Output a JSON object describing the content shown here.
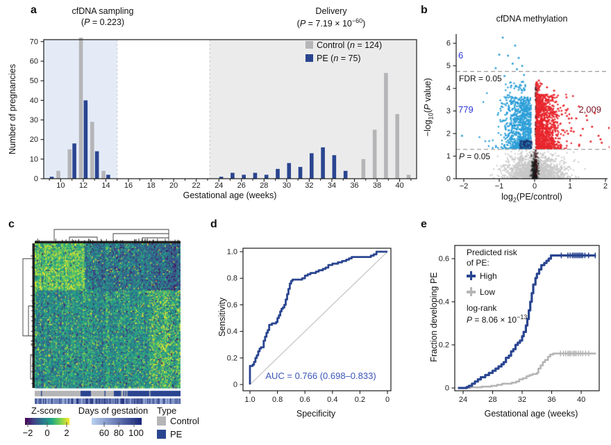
{
  "panels": {
    "a": {
      "label": "a",
      "sampling_title": "cfDNA sampling",
      "sampling_p": {
        "pre": "(",
        "it": "P",
        "post": " = 0.223)"
      },
      "delivery_title": "Delivery",
      "delivery_p": {
        "pre": "(",
        "it": "P",
        "post": " = 7.19 × 10",
        "sup": "−60",
        "end": ")"
      },
      "ylabel": "Number of pregnancies",
      "xlabel": "Gestational age (weeks)",
      "legend": {
        "control": {
          "pre": "Control (",
          "it": "n",
          "post": " = 124)"
        },
        "pe": {
          "pre": "PE (",
          "it": "n",
          "post": " = 75)"
        }
      }
    },
    "b": {
      "label": "b",
      "title": "cfDNA methylation",
      "ylabel": {
        "p1": "−log",
        "sub": "10",
        "p2": "(",
        "it": "P",
        "p3": " value)"
      },
      "xlabel": {
        "p1": "log",
        "sub": "2",
        "p2": "(PE/control)"
      },
      "fdr_label": "FDR = 0.05",
      "p_label": {
        "it": "P",
        "post": " = 0.05"
      },
      "count_above_fdr": "6",
      "count_hypo": "779",
      "count_hyper": "2,009"
    },
    "c": {
      "label": "c",
      "zscore_title": "Z-score",
      "days_title": "Days of gestation",
      "type_title": "Type",
      "type_control": "Control",
      "type_pe": "PE"
    },
    "d": {
      "label": "d",
      "ylabel": "Sensitivity",
      "xlabel": "Specificity",
      "auc_label": "AUC = 0.766 (0.698–0.833)"
    },
    "e": {
      "label": "e",
      "ylabel": "Fraction developing PE",
      "xlabel": "Gestational age (weeks)",
      "legend_title1": "Predicted risk",
      "legend_title2": "of PE:",
      "high_label": "High",
      "low_label": "Low",
      "logrank_label": "log-rank",
      "p_value": {
        "it": "P",
        "post": " = 8.06 × 10",
        "sup": "−13"
      }
    }
  },
  "colors": {
    "pe_navy": "#2a4590",
    "control_gray": "#b5b5b7",
    "sampling_band": "#e4ebf7",
    "delivery_band": "#ebebeb",
    "hypo_blue": "#2d9fd8",
    "hyper_red": "#e8262d",
    "ns_gray": "#c8c8c8",
    "count_text_blue": "#2b35d8",
    "hyper_text_maroon": "#7a1222",
    "auc_text": "#3a55b8",
    "axis": "#1a1a1a",
    "dash_gray": "#999999",
    "diag_gray": "#c4c4c4"
  },
  "chart_data": [
    {
      "panel": "a",
      "type": "bar",
      "xlabel": "Gestational age (weeks)",
      "ylabel": "Number of pregnancies",
      "xlim": [
        8.5,
        41.5
      ],
      "ylim": [
        0,
        75
      ],
      "xticks": [
        10,
        12,
        14,
        16,
        18,
        20,
        22,
        24,
        26,
        28,
        30,
        32,
        34,
        36,
        38,
        40
      ],
      "yticks": [
        0,
        10,
        20,
        30,
        40,
        50,
        60,
        70
      ],
      "regions": [
        {
          "name": "cfDNA sampling",
          "p_value": "P = 0.223",
          "x0": 8.5,
          "x1": 15,
          "color": "#e4ebf7"
        },
        {
          "name": "Delivery",
          "p_value": "P = 7.19 × 10−60",
          "x0": 23.2,
          "x1": 41.5,
          "color": "#ebebeb"
        }
      ],
      "series": [
        {
          "name": "Control",
          "n": 124,
          "color": "#b5b5b7",
          "bars": [
            [
              10,
              4
            ],
            [
              11,
              15
            ],
            [
              12,
              72
            ],
            [
              13,
              29
            ],
            [
              14,
              4
            ],
            [
              37,
              10
            ],
            [
              38,
              25
            ],
            [
              39,
              54
            ],
            [
              40,
              33
            ],
            [
              41,
              2
            ]
          ]
        },
        {
          "name": "PE",
          "n": 75,
          "color": "#2a4590",
          "bars": [
            [
              9,
              1
            ],
            [
              11,
              18
            ],
            [
              12,
              40
            ],
            [
              13,
              14
            ],
            [
              14,
              2
            ],
            [
              24,
              1
            ],
            [
              25,
              3
            ],
            [
              26,
              2
            ],
            [
              27,
              3
            ],
            [
              28,
              2
            ],
            [
              29,
              5
            ],
            [
              30,
              8
            ],
            [
              31,
              6
            ],
            [
              32,
              13
            ],
            [
              33,
              16
            ],
            [
              34,
              12
            ],
            [
              35,
              4
            ]
          ]
        }
      ]
    },
    {
      "panel": "b",
      "type": "scatter",
      "title": "cfDNA methylation",
      "xlim": [
        -2.15,
        2.15
      ],
      "ylim": [
        0,
        6.5
      ],
      "xtick_vals": [
        -2,
        -1,
        0,
        1,
        2
      ],
      "xtick_labels": [
        "−2",
        "−1",
        "0",
        "1",
        "2"
      ],
      "ytick_vals": [
        0,
        1,
        2,
        3,
        4,
        5,
        6
      ],
      "ytick_labels": [
        "0",
        "1",
        "2",
        "3",
        "4",
        "5",
        "6"
      ],
      "fdr_line_y": 4.75,
      "p_line_y": 1.3,
      "n_hypo_significant": 779,
      "n_hyper_significant": 2009,
      "n_above_fdr": 6,
      "sim": {
        "seed": 42,
        "n_hypo": 800,
        "n_hyper": 980,
        "n_ns": 1500
      }
    },
    {
      "panel": "c",
      "type": "heatmap",
      "colormap": "viridis",
      "zscore_tick_labels": [
        "−2",
        "0",
        "2"
      ],
      "days_tick_labels": [
        "60",
        "80",
        "100"
      ],
      "type_categories": [
        {
          "label": "Control",
          "color": "#b5b5b7"
        },
        {
          "label": "PE",
          "color": "#2a4590"
        }
      ],
      "sim": {
        "seed": 7,
        "cols": 140,
        "rows": 120
      }
    },
    {
      "panel": "d",
      "type": "line",
      "xtick_vals": [
        1.0,
        0.8,
        0.6,
        0.4,
        0.2,
        0
      ],
      "xtick_labels": [
        "1.0",
        "0.8",
        "0.6",
        "0.4",
        "0.2",
        "0"
      ],
      "ytick_vals": [
        0,
        0.2,
        0.4,
        0.6,
        0.8,
        1.0
      ],
      "ytick_labels": [
        "0",
        "0.2",
        "0.4",
        "0.6",
        "0.8",
        "1.0"
      ],
      "auc": 0.766,
      "auc_ci": [
        0.698,
        0.833
      ],
      "roc_curve": [
        [
          1.0,
          0.0
        ],
        [
          1.0,
          0.14
        ],
        [
          0.98,
          0.15
        ],
        [
          0.97,
          0.17
        ],
        [
          0.96,
          0.2
        ],
        [
          0.95,
          0.22
        ],
        [
          0.94,
          0.25
        ],
        [
          0.93,
          0.27
        ],
        [
          0.92,
          0.28
        ],
        [
          0.9,
          0.33
        ],
        [
          0.89,
          0.36
        ],
        [
          0.88,
          0.39
        ],
        [
          0.87,
          0.41
        ],
        [
          0.86,
          0.45
        ],
        [
          0.84,
          0.46
        ],
        [
          0.81,
          0.47
        ],
        [
          0.8,
          0.5
        ],
        [
          0.79,
          0.52
        ],
        [
          0.78,
          0.55
        ],
        [
          0.77,
          0.57
        ],
        [
          0.76,
          0.58
        ],
        [
          0.75,
          0.6
        ],
        [
          0.74,
          0.64
        ],
        [
          0.73,
          0.68
        ],
        [
          0.72,
          0.72
        ],
        [
          0.71,
          0.76
        ],
        [
          0.7,
          0.78
        ],
        [
          0.69,
          0.79
        ],
        [
          0.64,
          0.79
        ],
        [
          0.62,
          0.8
        ],
        [
          0.6,
          0.82
        ],
        [
          0.58,
          0.83
        ],
        [
          0.56,
          0.84
        ],
        [
          0.52,
          0.85
        ],
        [
          0.5,
          0.86
        ],
        [
          0.47,
          0.87
        ],
        [
          0.45,
          0.88
        ],
        [
          0.43,
          0.9
        ],
        [
          0.4,
          0.91
        ],
        [
          0.36,
          0.92
        ],
        [
          0.33,
          0.93
        ],
        [
          0.3,
          0.94
        ],
        [
          0.28,
          0.95
        ],
        [
          0.26,
          0.96
        ],
        [
          0.14,
          0.96
        ],
        [
          0.12,
          0.97
        ],
        [
          0.1,
          0.98
        ],
        [
          0.08,
          1.0
        ],
        [
          0.0,
          1.0
        ]
      ]
    },
    {
      "panel": "e",
      "type": "line",
      "xtick_vals": [
        24,
        28,
        32,
        36,
        40
      ],
      "xtick_labels": [
        "24",
        "28",
        "32",
        "36",
        "40"
      ],
      "ytick_vals": [
        0,
        0.2,
        0.4,
        0.6
      ],
      "ytick_labels": [
        "0",
        "0.2",
        "0.4",
        "0.6"
      ],
      "series": [
        {
          "name": "High",
          "color": "#2a4590",
          "points": [
            [
              23.3,
              0
            ],
            [
              24.5,
              0.005
            ],
            [
              24.8,
              0.01
            ],
            [
              25.2,
              0.02
            ],
            [
              25.6,
              0.03
            ],
            [
              26.0,
              0.04
            ],
            [
              26.4,
              0.05
            ],
            [
              27.0,
              0.06
            ],
            [
              27.5,
              0.07
            ],
            [
              28.0,
              0.08
            ],
            [
              28.4,
              0.09
            ],
            [
              28.8,
              0.1
            ],
            [
              29.2,
              0.11
            ],
            [
              29.5,
              0.12
            ],
            [
              29.8,
              0.14
            ],
            [
              30.2,
              0.15
            ],
            [
              30.5,
              0.17
            ],
            [
              30.8,
              0.18
            ],
            [
              31.1,
              0.2
            ],
            [
              31.4,
              0.21
            ],
            [
              31.7,
              0.22
            ],
            [
              32.0,
              0.24
            ],
            [
              32.2,
              0.26
            ],
            [
              32.5,
              0.29
            ],
            [
              32.7,
              0.32
            ],
            [
              32.9,
              0.36
            ],
            [
              33.1,
              0.4
            ],
            [
              33.3,
              0.44
            ],
            [
              33.5,
              0.48
            ],
            [
              33.8,
              0.51
            ],
            [
              34.0,
              0.53
            ],
            [
              34.3,
              0.55
            ],
            [
              34.6,
              0.57
            ],
            [
              35.0,
              0.58
            ],
            [
              35.3,
              0.59
            ],
            [
              35.6,
              0.6
            ],
            [
              35.9,
              0.615
            ],
            [
              42.0,
              0.615
            ]
          ],
          "censors": [
            37.3,
            38.2,
            38.5,
            38.8,
            39.0,
            39.2,
            39.4,
            39.6,
            39.8,
            40.0,
            40.2,
            40.5,
            41.0,
            41.9
          ]
        },
        {
          "name": "Low",
          "color": "#b5b5b7",
          "points": [
            [
              23.3,
              0
            ],
            [
              25.0,
              0.003
            ],
            [
              26.5,
              0.006
            ],
            [
              27.8,
              0.01
            ],
            [
              28.6,
              0.015
            ],
            [
              29.3,
              0.02
            ],
            [
              30.6,
              0.025
            ],
            [
              31.2,
              0.03
            ],
            [
              31.6,
              0.04
            ],
            [
              32.1,
              0.045
            ],
            [
              32.6,
              0.055
            ],
            [
              33.0,
              0.06
            ],
            [
              33.4,
              0.065
            ],
            [
              34.0,
              0.07
            ],
            [
              34.2,
              0.09
            ],
            [
              34.5,
              0.105
            ],
            [
              34.8,
              0.12
            ],
            [
              35.1,
              0.13
            ],
            [
              35.5,
              0.145
            ],
            [
              35.8,
              0.155
            ],
            [
              36.2,
              0.16
            ],
            [
              42.0,
              0.16
            ]
          ],
          "censors": [
            37.2,
            37.6,
            37.9,
            38.2,
            38.4,
            38.6,
            38.9,
            39.1,
            39.3,
            39.6,
            39.9,
            40.2,
            40.6,
            41.0
          ]
        }
      ],
      "logrank_p": "8.06 × 10−13"
    }
  ]
}
